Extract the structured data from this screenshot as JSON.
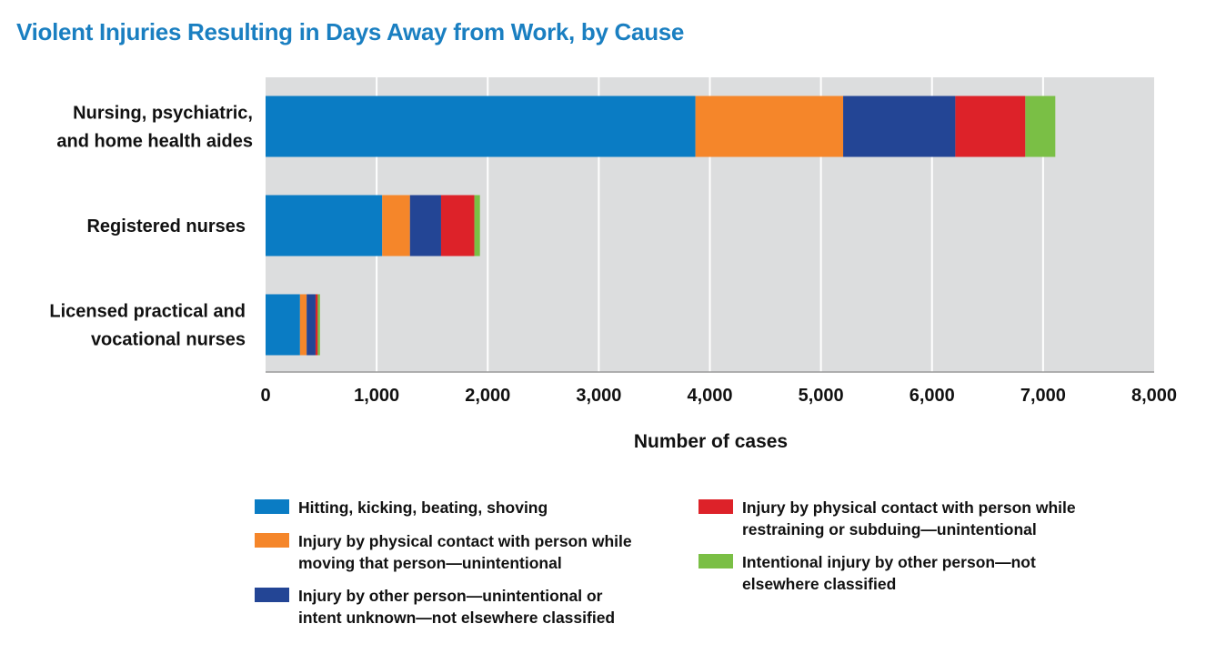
{
  "chart_data": {
    "type": "bar",
    "orientation": "horizontal",
    "stacked": true,
    "title": "Violent Injuries Resulting in Days Away from Work, by Cause",
    "xlabel": "Number of cases",
    "ylabel": "",
    "xlim": [
      0,
      8000
    ],
    "xticks": [
      0,
      1000,
      2000,
      3000,
      4000,
      5000,
      6000,
      7000,
      8000
    ],
    "xtick_labels": [
      "0",
      "1,000",
      "2,000",
      "3,000",
      "4,000",
      "5,000",
      "6,000",
      "7,000",
      "8,000"
    ],
    "grid": true,
    "legend_position": "bottom",
    "categories": [
      [
        "Nursing, psychiatric,",
        "and home health aides"
      ],
      [
        "Registered nurses"
      ],
      [
        "Licensed practical and",
        "vocational nurses"
      ]
    ],
    "series": [
      {
        "name": [
          "Hitting, kicking, beating, shoving"
        ],
        "color": "#0a7cc4",
        "values": [
          3870,
          1050,
          310
        ]
      },
      {
        "name": [
          "Injury by physical contact with person while",
          "moving that person—unintentional"
        ],
        "color": "#f5862a",
        "values": [
          1330,
          250,
          60
        ]
      },
      {
        "name": [
          "Injury by other person—unintentional or",
          "intent unknown—not elsewhere classified"
        ],
        "color": "#234595",
        "values": [
          1010,
          280,
          80
        ]
      },
      {
        "name": [
          "Injury by physical contact with person while",
          "restraining or subduing—unintentional"
        ],
        "color": "#dd2229",
        "values": [
          630,
          300,
          20
        ]
      },
      {
        "name": [
          "Intentional injury by other person—not",
          "elsewhere classified"
        ],
        "color": "#7abf45",
        "values": [
          270,
          50,
          20
        ]
      }
    ]
  }
}
